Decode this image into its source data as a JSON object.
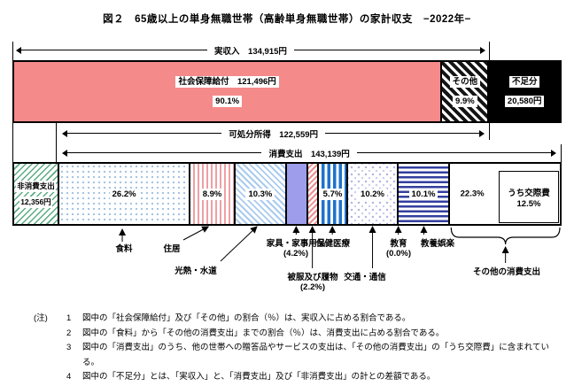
{
  "title": "図２　65歳以上の単身無職世帯（高齢単身無職世帯）の家計収支　−2022年−",
  "colors": {
    "bar_pink": "#f58a8a",
    "furniture_purple": "#9d9deb",
    "health_blue": "#1f72cc",
    "recreation_navy": "#333f9e",
    "nonconsumption_green": "#5aab82",
    "shortfall_black": "#000000"
  },
  "chart_data": {
    "type": "bar",
    "orientation": "horizontal-stacked",
    "unit": "円",
    "income": {
      "arrow_label": "実収入　134,915円",
      "amount": 134915,
      "segments": [
        {
          "key": "social-security",
          "name": "社会保障給付",
          "label": "社会保障給付　121,496円",
          "pct_label": "90.1%",
          "amount": 121496,
          "pct": 90.1,
          "pattern": "pink-solid"
        },
        {
          "key": "other-income",
          "name": "その他",
          "label": "その他",
          "pct_label": "9.9%",
          "pct": 9.9,
          "pattern": "black-hatch"
        }
      ]
    },
    "shortfall": {
      "key": "shortfall",
      "label": "不足分",
      "amount_label": "20,580円",
      "amount": 20580,
      "pattern": "black-solid"
    },
    "disposable": {
      "arrow_label": "可処分所得　122,559円",
      "amount": 122559
    },
    "consumption": {
      "arrow_label": "消費支出　143,139円",
      "amount": 143139
    },
    "non_consumption": {
      "key": "non-consumption",
      "label": "非消費支出",
      "amount_label": "12,356円",
      "amount": 12356,
      "pattern": "green-diag"
    },
    "expenditure_segments": [
      {
        "key": "food",
        "name": "食料",
        "pct": 26.2,
        "bar_label": "26.2%",
        "pattern": "blue-dots"
      },
      {
        "key": "housing",
        "name": "住居",
        "pct": 8.9,
        "bar_label": "8.9%",
        "pattern": "pink-vstripes"
      },
      {
        "key": "utilities",
        "name": "光熱・水道",
        "pct": 10.3,
        "bar_label": "10.3%",
        "pattern": "blue-diag"
      },
      {
        "key": "furniture",
        "name": "家具・家事用品",
        "pct": 4.2,
        "sub_label": "(4.2%)",
        "pattern": "purple-solid"
      },
      {
        "key": "clothing",
        "name": "被服及び履物",
        "pct": 2.2,
        "sub_label": "(2.2%)",
        "pattern": "red-diag"
      },
      {
        "key": "health",
        "name": "保健医療",
        "pct": 5.7,
        "bar_label": "5.7%",
        "pattern": "blue-vstripes"
      },
      {
        "key": "transport",
        "name": "交通・通信",
        "pct": 10.2,
        "bar_label": "10.2%",
        "pattern": "confetti"
      },
      {
        "key": "education",
        "name": "教育",
        "pct": 0.0,
        "sub_label": "(0.0%)",
        "pattern": "none"
      },
      {
        "key": "recreation",
        "name": "教養娯楽",
        "pct": 10.1,
        "bar_label": "10.1%",
        "pattern": "navy-hstripes"
      },
      {
        "key": "other-consumption",
        "name": "その他の消費支出",
        "pct": 22.3,
        "bar_label": "22.3%",
        "pattern": "white",
        "inner_label": "うち交際費",
        "inner_pct": "12.5%"
      }
    ]
  },
  "notes": {
    "prefix": "(注)",
    "items": [
      {
        "num": "1",
        "text": "図中の「社会保障給付」及び「その他」の割合（％）は、実収入に占める割合である。"
      },
      {
        "num": "2",
        "text": "図中の「食料」から「その他の消費支出」までの割合（％）は、消費支出に占める割合である。"
      },
      {
        "num": "3",
        "text": "図中の「消費支出」のうち、他の世帯への贈答品やサービスの支出は、「その他の消費支出」の「うち交際費」に含まれている。"
      },
      {
        "num": "4",
        "text": "図中の「不足分」とは、「実収入」と、「消費支出」及び「非消費支出」の計との差額である。"
      }
    ]
  }
}
